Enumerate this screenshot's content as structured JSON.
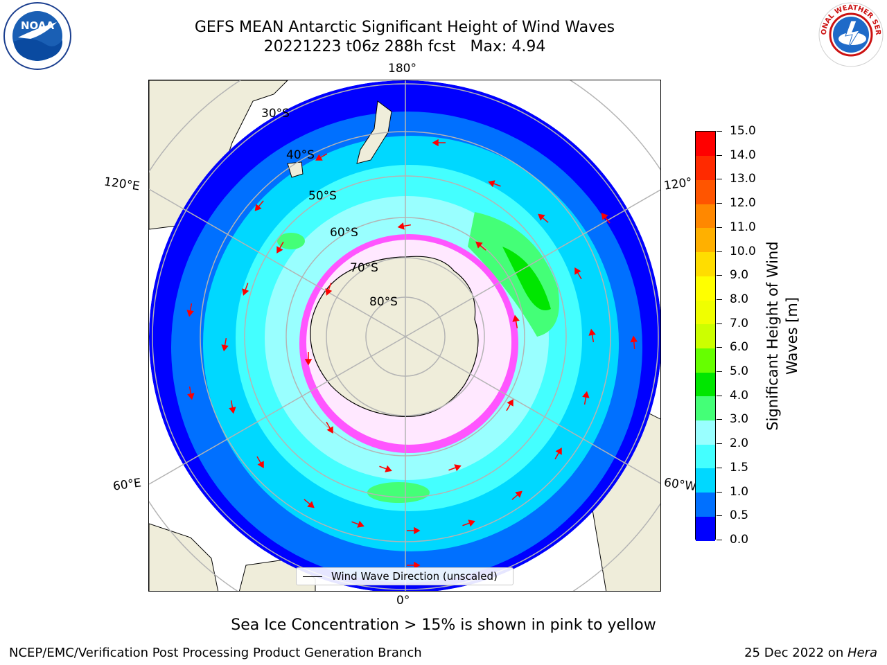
{
  "header": {
    "title_line1": "GEFS MEAN Antarctic Significant Height of Wind Waves",
    "title_line2": "20221223 t06z 288h fcst   Max: 4.94"
  },
  "logos": {
    "noaa_text": "NOAA",
    "nws_text": "NATIONAL WEATHER SERVICE"
  },
  "map": {
    "lon_labels": {
      "top": "180°",
      "upper_left": "120°E",
      "upper_right": "120°",
      "lower_left": "60°E",
      "lower_right": "60°W",
      "bottom": "0°"
    },
    "lat_labels": [
      "30°S",
      "40°S",
      "50°S",
      "60°S",
      "70°S",
      "80°S"
    ],
    "legend_label": "Wind Wave Direction (unscaled)",
    "colors": {
      "land": "#efedda",
      "arrow": "#ff0000",
      "grid": "#b4b4b4"
    }
  },
  "colorbar": {
    "title_line1": "Significant Height of Wind",
    "title_line2": "Waves [m]",
    "labels": [
      "0.0",
      "0.5",
      "1.0",
      "1.5",
      "2.0",
      "3.0",
      "4.0",
      "5.0",
      "6.0",
      "7.0",
      "8.0",
      "9.0",
      "10.0",
      "11.0",
      "12.0",
      "13.0",
      "14.0",
      "15.0"
    ],
    "colors": [
      "#0000ff",
      "#0070ff",
      "#00d8ff",
      "#44ffff",
      "#99ffff",
      "#44ff77",
      "#00e600",
      "#66ff00",
      "#ccff00",
      "#f0ff00",
      "#ffff00",
      "#ffdd00",
      "#ffb000",
      "#ff8800",
      "#ff5500",
      "#ff2a00",
      "#ff0000"
    ]
  },
  "notes": {
    "sea_ice": "Sea Ice Concentration > 15% is shown in pink to yellow"
  },
  "footer": {
    "left": "NCEP/EMC/Verification Post Processing Product Generation Branch",
    "right_prefix": "25 Dec 2022 on ",
    "right_machine": "Hera"
  }
}
